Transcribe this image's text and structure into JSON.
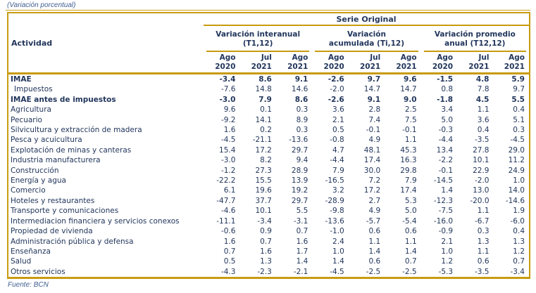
{
  "page": {
    "caption": "(Variación porcentual)",
    "source": "Fuente: BCN"
  },
  "colors": {
    "gold_border": "#c89b10",
    "table_text": "#22365c",
    "accent_blue_italic": "#3f5e91"
  },
  "table": {
    "activity_header": "Actividad",
    "serie_header": "Serie Original",
    "groups": [
      {
        "line1": "Variación interanual",
        "line2": "(T1,12)"
      },
      {
        "line1": "Variación",
        "line2": "acumulada (Ti,12)"
      },
      {
        "line1": "Variación promedio",
        "line2": "anual (T12,12)"
      }
    ],
    "periods": [
      {
        "m": "Ago",
        "y": "2020"
      },
      {
        "m": "Jul",
        "y": "2021"
      },
      {
        "m": "Ago",
        "y": "2021"
      },
      {
        "m": "Ago",
        "y": "2020"
      },
      {
        "m": "Jul",
        "y": "2021"
      },
      {
        "m": "Ago",
        "y": "2021"
      },
      {
        "m": "Ago",
        "y": "2020"
      },
      {
        "m": "Jul",
        "y": "2021"
      },
      {
        "m": "Ago",
        "y": "2021"
      }
    ],
    "rows": [
      {
        "label": "IMAE",
        "bold": true,
        "indent": false,
        "values": [
          "-3.4",
          "8.6",
          "9.1",
          "-2.6",
          "9.7",
          "9.6",
          "-1.5",
          "4.8",
          "5.9"
        ]
      },
      {
        "label": "Impuestos",
        "bold": false,
        "indent": true,
        "values": [
          "-7.6",
          "14.8",
          "14.6",
          "-2.0",
          "14.7",
          "14.7",
          "0.8",
          "7.8",
          "9.7"
        ]
      },
      {
        "label": "IMAE antes de impuestos",
        "bold": true,
        "indent": false,
        "values": [
          "-3.0",
          "7.9",
          "8.6",
          "-2.6",
          "9.1",
          "9.0",
          "-1.8",
          "4.5",
          "5.5"
        ]
      },
      {
        "label": "Agricultura",
        "bold": false,
        "indent": false,
        "values": [
          "9.6",
          "0.1",
          "0.3",
          "3.6",
          "2.8",
          "2.5",
          "3.4",
          "1.1",
          "0.4"
        ]
      },
      {
        "label": "Pecuario",
        "bold": false,
        "indent": false,
        "values": [
          "-9.2",
          "14.1",
          "8.9",
          "2.1",
          "7.4",
          "7.5",
          "5.0",
          "3.6",
          "5.1"
        ]
      },
      {
        "label": "Silvicultura y extracción de madera",
        "bold": false,
        "indent": false,
        "values": [
          "1.6",
          "0.2",
          "0.3",
          "0.5",
          "-0.1",
          "-0.1",
          "-0.3",
          "0.4",
          "0.3"
        ]
      },
      {
        "label": "Pesca y acuicultura",
        "bold": false,
        "indent": false,
        "values": [
          "-4.5",
          "-21.1",
          "-13.6",
          "-0.8",
          "4.9",
          "1.1",
          "-4.4",
          "-3.5",
          "-4.5"
        ]
      },
      {
        "label": "Explotación de minas y canteras",
        "bold": false,
        "indent": false,
        "values": [
          "15.4",
          "17.2",
          "29.7",
          "4.7",
          "48.1",
          "45.3",
          "13.4",
          "27.8",
          "29.0"
        ]
      },
      {
        "label": "Industria manufacturera",
        "bold": false,
        "indent": false,
        "values": [
          "-3.0",
          "8.2",
          "9.4",
          "-4.4",
          "17.4",
          "16.3",
          "-2.2",
          "10.1",
          "11.2"
        ]
      },
      {
        "label": "Construcción",
        "bold": false,
        "indent": false,
        "values": [
          "-1.2",
          "27.3",
          "28.9",
          "7.9",
          "30.0",
          "29.8",
          "-0.1",
          "22.9",
          "24.9"
        ]
      },
      {
        "label": "Energía y agua",
        "bold": false,
        "indent": false,
        "values": [
          "-22.2",
          "15.5",
          "13.9",
          "-16.5",
          "7.2",
          "7.9",
          "-14.5",
          "-2.0",
          "1.0"
        ]
      },
      {
        "label": "Comercio",
        "bold": false,
        "indent": false,
        "values": [
          "6.1",
          "19.6",
          "19.2",
          "3.2",
          "17.2",
          "17.4",
          "1.4",
          "13.0",
          "14.0"
        ]
      },
      {
        "label": "Hoteles y restaurantes",
        "bold": false,
        "indent": false,
        "values": [
          "-47.7",
          "37.7",
          "29.7",
          "-28.9",
          "2.7",
          "5.3",
          "-12.3",
          "-20.0",
          "-14.6"
        ]
      },
      {
        "label": "Transporte y comunicaciones",
        "bold": false,
        "indent": false,
        "values": [
          "-4.6",
          "10.1",
          "5.5",
          "-9.8",
          "4.9",
          "5.0",
          "-7.5",
          "1.1",
          "1.9"
        ]
      },
      {
        "label": "Intermediacion financiera y servicios conexos",
        "bold": false,
        "indent": false,
        "values": [
          "-11.1",
          "-3.4",
          "-3.1",
          "-13.6",
          "-5.7",
          "-5.4",
          "-16.0",
          "-6.7",
          "-6.0"
        ]
      },
      {
        "label": "Propiedad de vivienda",
        "bold": false,
        "indent": false,
        "values": [
          "-0.6",
          "0.9",
          "0.7",
          "-1.0",
          "0.6",
          "0.6",
          "-0.9",
          "0.3",
          "0.4"
        ]
      },
      {
        "label": "Administración pública y defensa",
        "bold": false,
        "indent": false,
        "values": [
          "1.6",
          "0.7",
          "1.6",
          "2.4",
          "1.1",
          "1.1",
          "2.1",
          "1.3",
          "1.3"
        ]
      },
      {
        "label": "Enseñanza",
        "bold": false,
        "indent": false,
        "values": [
          "0.7",
          "1.6",
          "1.7",
          "1.0",
          "1.4",
          "1.4",
          "1.0",
          "1.1",
          "1.2"
        ]
      },
      {
        "label": "Salud",
        "bold": false,
        "indent": false,
        "values": [
          "0.5",
          "1.3",
          "1.4",
          "1.4",
          "0.6",
          "0.7",
          "1.2",
          "0.6",
          "0.7"
        ]
      },
      {
        "label": "Otros servicios",
        "bold": false,
        "indent": false,
        "values": [
          "-4.3",
          "-2.3",
          "-2.1",
          "-4.5",
          "-2.5",
          "-2.5",
          "-5.3",
          "-3.5",
          "-3.4"
        ]
      }
    ]
  }
}
